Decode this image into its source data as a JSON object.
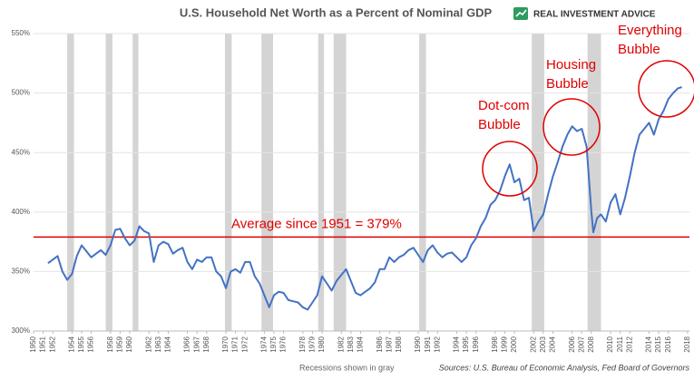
{
  "chart_data": {
    "type": "line",
    "title": "U.S. Household Net Worth as a Percent of Nominal GDP",
    "brand": "REAL INVESTMENT ADVICE",
    "note": "Recessions shown in gray",
    "source": "Sources: U.S. Bureau of Economic Analysis, Fed Board of Governors",
    "color": "#4472c4",
    "grid": true,
    "xlim": [
      1950,
      2018.2
    ],
    "ylim": [
      300,
      550
    ],
    "yticks": [
      {
        "value": 300,
        "label": "300%"
      },
      {
        "value": 350,
        "label": "350%"
      },
      {
        "value": 400,
        "label": "400%"
      },
      {
        "value": 450,
        "label": "450%"
      },
      {
        "value": 500,
        "label": "500%"
      },
      {
        "value": 550,
        "label": "550%"
      }
    ],
    "xticks": [
      1950,
      1951,
      1952,
      1954,
      1955,
      1956,
      1958,
      1959,
      1960,
      1962,
      1963,
      1964,
      1966,
      1967,
      1968,
      1970,
      1971,
      1972,
      1974,
      1975,
      1976,
      1978,
      1979,
      1980,
      1982,
      1983,
      1984,
      1986,
      1987,
      1988,
      1990,
      1991,
      1992,
      1994,
      1995,
      1996,
      1998,
      1999,
      2000,
      2002,
      2003,
      2004,
      2006,
      2007,
      2008,
      2010,
      2011,
      2012,
      2014,
      2015,
      2016,
      2018
    ],
    "recessions": [
      [
        1953.5,
        1954.2
      ],
      [
        1957.5,
        1958.2
      ],
      [
        1960.3,
        1960.9
      ],
      [
        1969.9,
        1970.6
      ],
      [
        1973.7,
        1974.9
      ],
      [
        1979.6,
        1980.2
      ],
      [
        1981.2,
        1982.5
      ],
      [
        1990.1,
        1990.8
      ],
      [
        2001.8,
        2003.1
      ],
      [
        2007.6,
        2009.0
      ]
    ],
    "reference_line": {
      "value": 379,
      "color": "#e00000",
      "label": "Average since 1951 = 379%"
    },
    "annotations": [
      [
        "Dot-com",
        "Bubble"
      ],
      [
        "Housing",
        "Bubble"
      ],
      [
        "Everything",
        "Bubble"
      ]
    ],
    "x": [
      1951.5,
      1952,
      1952.5,
      1953,
      1953.5,
      1954,
      1954.5,
      1955,
      1955.5,
      1956,
      1956.5,
      1957,
      1957.5,
      1958,
      1958.5,
      1959,
      1959.5,
      1960,
      1960.5,
      1961,
      1961.5,
      1962,
      1962.5,
      1963,
      1963.5,
      1964,
      1964.5,
      1965,
      1965.5,
      1966,
      1966.5,
      1967,
      1967.5,
      1968,
      1968.5,
      1969,
      1969.5,
      1970,
      1970.5,
      1971,
      1971.5,
      1972,
      1972.5,
      1973,
      1973.5,
      1974,
      1974.5,
      1975,
      1975.5,
      1976,
      1976.5,
      1977,
      1977.5,
      1978,
      1978.5,
      1979,
      1979.5,
      1980,
      1980.5,
      1981,
      1981.5,
      1982,
      1982.5,
      1983,
      1983.5,
      1984,
      1984.5,
      1985,
      1985.5,
      1986,
      1986.5,
      1987,
      1987.5,
      1988,
      1988.5,
      1989,
      1989.5,
      1990,
      1990.5,
      1991,
      1991.5,
      1992,
      1992.5,
      1993,
      1993.5,
      1994,
      1994.5,
      1995,
      1995.5,
      1996,
      1996.5,
      1997,
      1997.5,
      1998,
      1998.5,
      1999,
      1999.5,
      2000,
      2000.5,
      2001,
      2001.5,
      2002,
      2002.5,
      2003,
      2003.5,
      2004,
      2004.5,
      2005,
      2005.5,
      2006,
      2006.5,
      2007,
      2007.5,
      2008,
      2008.2,
      2008.6,
      2009,
      2009.5,
      2010,
      2010.5,
      2011,
      2011.5,
      2012,
      2012.5,
      2013,
      2013.5,
      2014,
      2014.5,
      2015,
      2015.5,
      2016,
      2016.5,
      2017,
      2017.4
    ],
    "values": [
      357,
      360,
      363,
      350,
      343,
      348,
      363,
      372,
      367,
      362,
      365,
      368,
      364,
      372,
      385,
      386,
      378,
      372,
      376,
      388,
      384,
      382,
      358,
      372,
      375,
      373,
      365,
      368,
      370,
      358,
      352,
      360,
      358,
      362,
      362,
      350,
      346,
      336,
      350,
      352,
      349,
      358,
      358,
      346,
      340,
      330,
      320,
      330,
      333,
      332,
      326,
      325,
      324,
      320,
      318,
      324,
      330,
      346,
      340,
      334,
      342,
      347,
      352,
      342,
      332,
      330,
      333,
      336,
      341,
      352,
      352,
      362,
      358,
      362,
      364,
      368,
      370,
      364,
      358,
      368,
      372,
      366,
      362,
      365,
      366,
      362,
      358,
      362,
      372,
      378,
      388,
      395,
      406,
      410,
      418,
      430,
      440,
      425,
      428,
      410,
      412,
      384,
      392,
      398,
      415,
      430,
      442,
      455,
      465,
      472,
      468,
      470,
      455,
      400,
      383,
      395,
      398,
      392,
      408,
      415,
      398,
      412,
      430,
      450,
      465,
      470,
      475,
      465,
      478,
      485,
      495,
      500,
      504,
      505
    ]
  }
}
